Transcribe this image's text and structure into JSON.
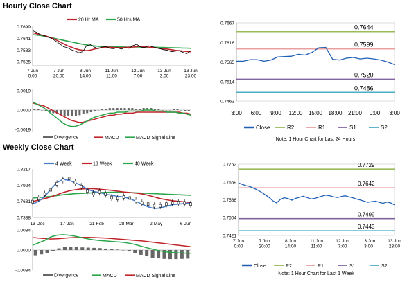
{
  "sections": {
    "hourly_title": "Hourly Close Chart",
    "weekly_title": "Weekly Close Chart"
  },
  "colors": {
    "ma20": "#c0232a",
    "ma50": "#2aa64a",
    "close": "#1f5fb4",
    "week4": "#4a7fc8",
    "week13": "#c0232a",
    "week40": "#2aa64a",
    "r2": "#9bbb59",
    "r1": "#e8a0a0",
    "s1": "#8064a2",
    "s2": "#4bacc6",
    "divergence": "#666666",
    "macd": "#2aa64a",
    "signal": "#c0232a"
  },
  "chart_data": [
    {
      "id": "hourly-price",
      "type": "line",
      "legend": [
        "20 Hr MA",
        "50 Hrs MA"
      ],
      "yticks": [
        "0.7699",
        "0.7641",
        "0.7583",
        "0.7525"
      ],
      "ylim": [
        0.7505,
        0.7705
      ],
      "xticks": [
        "7 Jun\n0:00",
        "7 Jun\n20:00",
        "8 Jun\n14:00",
        "11 Jun\n11:00",
        "12 Jun\n7:00",
        "13 Jun\n3:00",
        "13 Jun\n23:00"
      ],
      "series": [
        {
          "name": "Close",
          "values": [
            0.768,
            0.7672,
            0.766,
            0.7655,
            0.7648,
            0.764,
            0.7628,
            0.7615,
            0.76,
            0.7595,
            0.7585,
            0.7578,
            0.757,
            0.7575,
            0.7605,
            0.761,
            0.7598,
            0.759,
            0.7598,
            0.76,
            0.7592,
            0.759,
            0.7595,
            0.7588,
            0.7595,
            0.7592,
            0.7605,
            0.7612,
            0.7598,
            0.7595,
            0.7605,
            0.76,
            0.7595,
            0.759,
            0.7585,
            0.7582,
            0.7575,
            0.7578,
            0.758,
            0.7572,
            0.7565,
            0.758
          ]
        },
        {
          "name": "20 Hr MA",
          "values": [
            0.767,
            0.7665,
            0.766,
            0.7655,
            0.765,
            0.7643,
            0.7635,
            0.7625,
            0.7615,
            0.7605,
            0.7598,
            0.759,
            0.7585,
            0.7582,
            0.758,
            0.7583,
            0.7588,
            0.7592,
            0.7596,
            0.7598,
            0.7597,
            0.7596,
            0.7595,
            0.7595,
            0.7596,
            0.7597,
            0.7598,
            0.76,
            0.7602,
            0.76,
            0.7598,
            0.7596,
            0.7594,
            0.7592,
            0.759,
            0.7588,
            0.7585,
            0.7582,
            0.758,
            0.7578,
            0.7576,
            0.7575
          ]
        },
        {
          "name": "50 Hrs MA",
          "values": [
            0.766,
            0.7658,
            0.7656,
            0.7652,
            0.7648,
            0.7645,
            0.764,
            0.7636,
            0.7632,
            0.7628,
            0.7624,
            0.762,
            0.7616,
            0.7612,
            0.7609,
            0.7606,
            0.7604,
            0.7602,
            0.7601,
            0.76,
            0.76,
            0.7599,
            0.7599,
            0.7599,
            0.7598,
            0.7598,
            0.7598,
            0.7598,
            0.7598,
            0.7598,
            0.7597,
            0.7597,
            0.7597,
            0.7596,
            0.7596,
            0.7595,
            0.7595,
            0.7594,
            0.7594,
            0.7593,
            0.7593,
            0.7592
          ]
        }
      ]
    },
    {
      "id": "hourly-macd",
      "type": "bar",
      "legend": [
        "Divergence",
        "MACD",
        "MACD Signal Line"
      ],
      "yticks": [
        "0.0019",
        "0.0000",
        "-0.0019"
      ],
      "ylim": [
        -0.0021,
        0.0021
      ],
      "series": [
        {
          "name": "Divergence",
          "values": [
            0.0001,
            0.0001,
            0.0,
            -0.0001,
            -0.0002,
            -0.0003,
            -0.0004,
            -0.0005,
            -0.0006,
            -0.0006,
            -0.0006,
            -0.0006,
            -0.0005,
            -0.0004,
            -0.0003,
            -0.0002,
            -0.0001,
            0.0,
            0.0001,
            0.0001,
            0.0002,
            0.0002,
            0.0002,
            0.0002,
            0.0002,
            0.0002,
            0.0002,
            0.0001,
            0.0001,
            0.0002,
            0.0002,
            0.0002,
            0.0001,
            0.0001,
            0.0,
            0.0,
            0.0,
            0.0001,
            0.0001,
            0.0,
            -0.0001,
            -0.0001
          ]
        },
        {
          "name": "MACD",
          "values": [
            0.0008,
            0.0006,
            0.0004,
            0.0002,
            -0.0001,
            -0.0004,
            -0.0007,
            -0.001,
            -0.0013,
            -0.0015,
            -0.0016,
            -0.0016,
            -0.0015,
            -0.0013,
            -0.0011,
            -0.0009,
            -0.0007,
            -0.0006,
            -0.0005,
            -0.0004,
            -0.0003,
            -0.0003,
            -0.0002,
            -0.0002,
            -0.0002,
            -0.0001,
            -0.0001,
            -0.0001,
            -0.0001,
            0.0,
            0.0,
            0.0,
            -0.0001,
            -0.0001,
            -0.0001,
            -0.0002,
            -0.0002,
            -0.0002,
            -0.0003,
            -0.0003,
            -0.0004,
            -0.0005
          ]
        },
        {
          "name": "MACD Signal Line",
          "values": [
            0.0007,
            0.0006,
            0.0005,
            0.0004,
            0.0002,
            0.0,
            -0.0002,
            -0.0004,
            -0.0006,
            -0.0008,
            -0.001,
            -0.0011,
            -0.0012,
            -0.0012,
            -0.0011,
            -0.001,
            -0.0009,
            -0.0008,
            -0.0007,
            -0.0006,
            -0.0005,
            -0.0005,
            -0.0004,
            -0.0004,
            -0.0003,
            -0.0003,
            -0.0003,
            -0.0002,
            -0.0002,
            -0.0002,
            -0.0002,
            -0.0002,
            -0.0002,
            -0.0002,
            -0.0002,
            -0.0002,
            -0.0002,
            -0.0002,
            -0.0002,
            -0.0003,
            -0.0003,
            -0.0004
          ]
        }
      ]
    },
    {
      "id": "hourly-levels",
      "type": "line",
      "yticks": [
        "0.7667",
        "0.7616",
        "0.7565",
        "0.7514",
        "0.7463"
      ],
      "ylim": [
        0.7463,
        0.7667
      ],
      "xticks": [
        "3:00",
        "6:00",
        "9:00",
        "12:00",
        "15:00",
        "18:00",
        "21:00",
        "0:00",
        "3:00"
      ],
      "level_labels": [
        "0.7644",
        "0.7599",
        "0.7520",
        "0.7486"
      ],
      "legend": [
        "Close",
        "R2",
        "R1",
        "S1",
        "S2"
      ],
      "note": "Note: 1 Hour Chart for Last 24 Hours",
      "levels": [
        {
          "name": "R2",
          "value": 0.7644
        },
        {
          "name": "R1",
          "value": 0.7599
        },
        {
          "name": "S1",
          "value": 0.752
        },
        {
          "name": "S2",
          "value": 0.7486
        }
      ],
      "series": [
        {
          "name": "Close",
          "values": [
            0.7567,
            0.7567,
            0.7571,
            0.7571,
            0.7567,
            0.757,
            0.7578,
            0.7579,
            0.758,
            0.7585,
            0.7583,
            0.759,
            0.7602,
            0.7603,
            0.7572,
            0.757,
            0.7575,
            0.7577,
            0.7573,
            0.7575,
            0.7573,
            0.757,
            0.7565,
            0.7558
          ]
        }
      ]
    },
    {
      "id": "weekly-price",
      "type": "line",
      "legend": [
        "4 Week",
        "13 Week",
        "40 Week"
      ],
      "yticks": [
        "0.8217",
        "0.7924",
        "0.7631",
        "0.7338"
      ],
      "ylim": [
        0.7338,
        0.8217
      ],
      "xticks": [
        "13-Dec",
        "17-Jan",
        "21-Feb",
        "28-Mar",
        "2-May",
        "6-Jun"
      ],
      "series": [
        {
          "name": "Close",
          "values": [
            0.7625,
            0.768,
            0.776,
            0.784,
            0.795,
            0.802,
            0.805,
            0.797,
            0.79,
            0.782,
            0.777,
            0.78,
            0.776,
            0.77,
            0.768,
            0.771,
            0.769,
            0.764,
            0.76,
            0.758,
            0.755,
            0.755,
            0.758,
            0.76,
            0.761,
            0.76,
            0.758
          ]
        },
        {
          "name": "4 Week",
          "values": [
            0.758,
            0.763,
            0.772,
            0.785,
            0.797,
            0.803,
            0.801,
            0.797,
            0.792,
            0.785,
            0.781,
            0.779,
            0.776,
            0.774,
            0.772,
            0.771,
            0.768,
            0.763,
            0.758,
            0.753,
            0.75,
            0.751,
            0.754,
            0.757,
            0.758,
            0.759,
            0.76
          ]
        },
        {
          "name": "13 Week",
          "values": [
            0.7625,
            0.7655,
            0.768,
            0.771,
            0.775,
            0.779,
            0.782,
            0.784,
            0.7855,
            0.786,
            0.786,
            0.785,
            0.784,
            0.783,
            0.7815,
            0.78,
            0.779,
            0.778,
            0.7765,
            0.774,
            0.771,
            0.768,
            0.766,
            0.764,
            0.763,
            0.762,
            0.761
          ]
        },
        {
          "name": "40 Week",
          "values": [
            0.769,
            0.77,
            0.771,
            0.772,
            0.7735,
            0.775,
            0.776,
            0.777,
            0.7775,
            0.778,
            0.7785,
            0.779,
            0.7793,
            0.7795,
            0.7795,
            0.7793,
            0.779,
            0.7785,
            0.778,
            0.7775,
            0.777,
            0.7765,
            0.776,
            0.7755,
            0.775,
            0.7745,
            0.774
          ]
        }
      ]
    },
    {
      "id": "weekly-macd",
      "type": "bar",
      "legend": [
        "Divergence",
        "MACD",
        "MACD Signal Line"
      ],
      "yticks": [
        "0.0084",
        "0.0000",
        "-0.0084"
      ],
      "ylim": [
        -0.0084,
        0.0084
      ],
      "series": [
        {
          "name": "Divergence",
          "values": [
            -0.0022,
            -0.0018,
            -0.0012,
            -0.0003,
            0.0007,
            0.0012,
            0.0013,
            0.0012,
            0.0011,
            0.001,
            0.0009,
            0.0008,
            0.0006,
            0.0004,
            0.0002,
            0.0,
            -0.0006,
            -0.0012,
            -0.002,
            -0.0026,
            -0.0032,
            -0.0035,
            -0.0037,
            -0.0038,
            -0.0038,
            -0.0037,
            -0.0036
          ]
        },
        {
          "name": "MACD",
          "values": [
            0.002,
            0.003,
            0.004,
            0.0055,
            0.0062,
            0.0064,
            0.0062,
            0.0058,
            0.0052,
            0.0047,
            0.0043,
            0.004,
            0.0038,
            0.0036,
            0.0034,
            0.0032,
            0.0028,
            0.0022,
            0.0015,
            0.0008,
            0.0002,
            -0.0004,
            -0.0008,
            -0.001,
            -0.0012,
            -0.0013,
            -0.0014
          ]
        },
        {
          "name": "MACD Signal Line",
          "values": [
            0.0052,
            0.005,
            0.0048,
            0.0046,
            0.0047,
            0.0049,
            0.0051,
            0.0052,
            0.0053,
            0.0053,
            0.0052,
            0.0051,
            0.005,
            0.0048,
            0.0046,
            0.0044,
            0.0042,
            0.004,
            0.0038,
            0.0035,
            0.0032,
            0.0029,
            0.0026,
            0.0023,
            0.002,
            0.0017,
            0.0014
          ]
        }
      ]
    },
    {
      "id": "weekly-levels",
      "type": "line",
      "yticks": [
        "0.7752",
        "0.7669",
        "0.7586",
        "0.7504",
        "0.7421"
      ],
      "ylim": [
        0.7421,
        0.7752
      ],
      "xticks": [
        "7 Jun\n0:00",
        "7 Jun\n20:00",
        "8 Jun\n14:00",
        "11 Jun\n11:00",
        "12 Jun\n7:00",
        "13 Jun\n3:00",
        "13 Jun\n23:00"
      ],
      "level_labels": [
        "0.7729",
        "0.7642",
        "0.7499",
        "0.7443"
      ],
      "legend": [
        "Close",
        "R2",
        "R1",
        "S1",
        "S2"
      ],
      "note": "Note: 1 Hour Chart for Last 1 Week",
      "levels": [
        {
          "name": "R2",
          "value": 0.7729
        },
        {
          "name": "R1",
          "value": 0.7642
        },
        {
          "name": "S1",
          "value": 0.7499
        },
        {
          "name": "S2",
          "value": 0.7443
        }
      ],
      "series": [
        {
          "name": "Close",
          "values": [
            0.7665,
            0.7658,
            0.7652,
            0.7648,
            0.764,
            0.7632,
            0.7622,
            0.761,
            0.7598,
            0.7582,
            0.7572,
            0.7588,
            0.7596,
            0.7592,
            0.7585,
            0.7593,
            0.7598,
            0.7603,
            0.7597,
            0.759,
            0.7593,
            0.7598,
            0.7604,
            0.7608,
            0.7605,
            0.76,
            0.7597,
            0.7602,
            0.7605,
            0.76,
            0.7596,
            0.759,
            0.7586,
            0.758,
            0.7575,
            0.7578,
            0.758,
            0.7575,
            0.757,
            0.7576,
            0.7572,
            0.7563
          ]
        }
      ]
    }
  ]
}
